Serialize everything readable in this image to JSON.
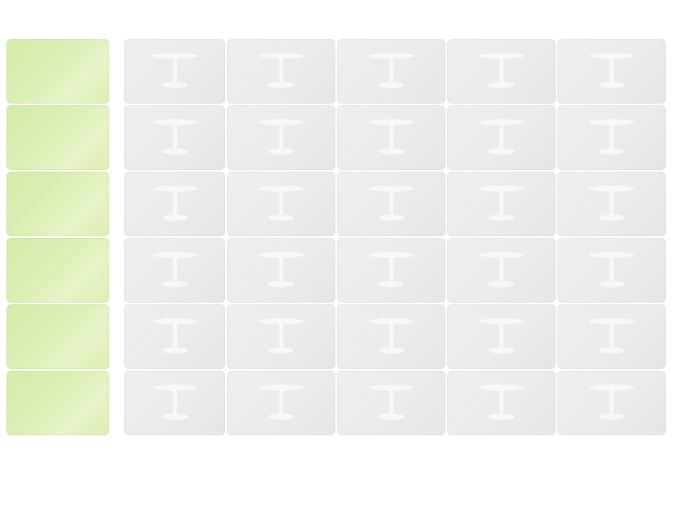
{
  "grid": {
    "rows": [
      {
        "row_header": "",
        "slots": [
          {
            "icon": "table-icon"
          },
          {
            "icon": "table-icon"
          },
          {
            "icon": "table-icon"
          },
          {
            "icon": "table-icon"
          },
          {
            "icon": "table-icon"
          }
        ]
      },
      {
        "row_header": "",
        "slots": [
          {
            "icon": "table-icon"
          },
          {
            "icon": "table-icon"
          },
          {
            "icon": "table-icon"
          },
          {
            "icon": "table-icon"
          },
          {
            "icon": "table-icon"
          }
        ]
      },
      {
        "row_header": "",
        "slots": [
          {
            "icon": "table-icon"
          },
          {
            "icon": "table-icon"
          },
          {
            "icon": "table-icon"
          },
          {
            "icon": "table-icon"
          },
          {
            "icon": "table-icon"
          }
        ]
      },
      {
        "row_header": "",
        "slots": [
          {
            "icon": "table-icon"
          },
          {
            "icon": "table-icon"
          },
          {
            "icon": "table-icon"
          },
          {
            "icon": "table-icon"
          },
          {
            "icon": "table-icon"
          }
        ]
      },
      {
        "row_header": "",
        "slots": [
          {
            "icon": "table-icon"
          },
          {
            "icon": "table-icon"
          },
          {
            "icon": "table-icon"
          },
          {
            "icon": "table-icon"
          },
          {
            "icon": "table-icon"
          }
        ]
      },
      {
        "row_header": "",
        "slots": [
          {
            "icon": "table-icon"
          },
          {
            "icon": "table-icon"
          },
          {
            "icon": "table-icon"
          },
          {
            "icon": "table-icon"
          },
          {
            "icon": "table-icon"
          }
        ]
      }
    ]
  },
  "colors": {
    "row_header": "#dcefb5",
    "slot": "#ececec",
    "icon": "#f8f8f8"
  }
}
